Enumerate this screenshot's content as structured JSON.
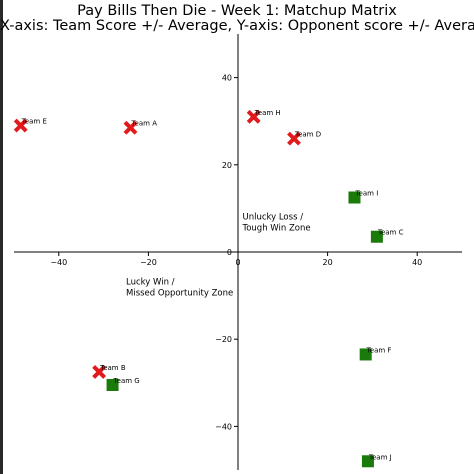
{
  "chart_data": {
    "type": "scatter",
    "title": "Pay Bills Then Die - Week 1: Matchup Matrix",
    "subtitle": "X-axis: Team Score +/- Average, Y-axis: Opponent score +/- Average",
    "xlim": [
      -50,
      50
    ],
    "ylim": [
      -50,
      50
    ],
    "x_ticks": [
      -40,
      -20,
      0,
      20,
      40
    ],
    "y_ticks": [
      -40,
      -20,
      0,
      20,
      40
    ],
    "x_tick_labels": [
      "−40",
      "−20",
      "0",
      "20",
      "40"
    ],
    "y_tick_labels": [
      "−40",
      "−20",
      "0",
      "20",
      "40"
    ],
    "grid": false,
    "annotations": [
      {
        "lines": [
          "Unlucky Loss /",
          " Tough Win Zone"
        ],
        "x": 1,
        "y": 7.5
      },
      {
        "lines": [
          "Lucky Win /",
          " Missed Opportunity Zone"
        ],
        "x": -25,
        "y": -7.5
      }
    ],
    "series": [
      {
        "marker": "x",
        "color": "#e31a1c",
        "points": [
          {
            "label": "Team E",
            "x": -48.5,
            "y": 29
          },
          {
            "label": "Team A",
            "x": -24,
            "y": 28.5
          },
          {
            "label": "Team H",
            "x": 3.5,
            "y": 31
          },
          {
            "label": "Team D",
            "x": 12.5,
            "y": 26
          },
          {
            "label": "Team B",
            "x": -31,
            "y": -27.5
          }
        ]
      },
      {
        "marker": "square",
        "color": "#1a7a0a",
        "points": [
          {
            "label": "Team I",
            "x": 26,
            "y": 12.5
          },
          {
            "label": "Team C",
            "x": 31,
            "y": 3.5
          },
          {
            "label": "Team G",
            "x": -28,
            "y": -30.5
          },
          {
            "label": "Team F",
            "x": 28.5,
            "y": -23.5
          },
          {
            "label": "Team J",
            "x": 29,
            "y": -48
          }
        ]
      }
    ]
  }
}
